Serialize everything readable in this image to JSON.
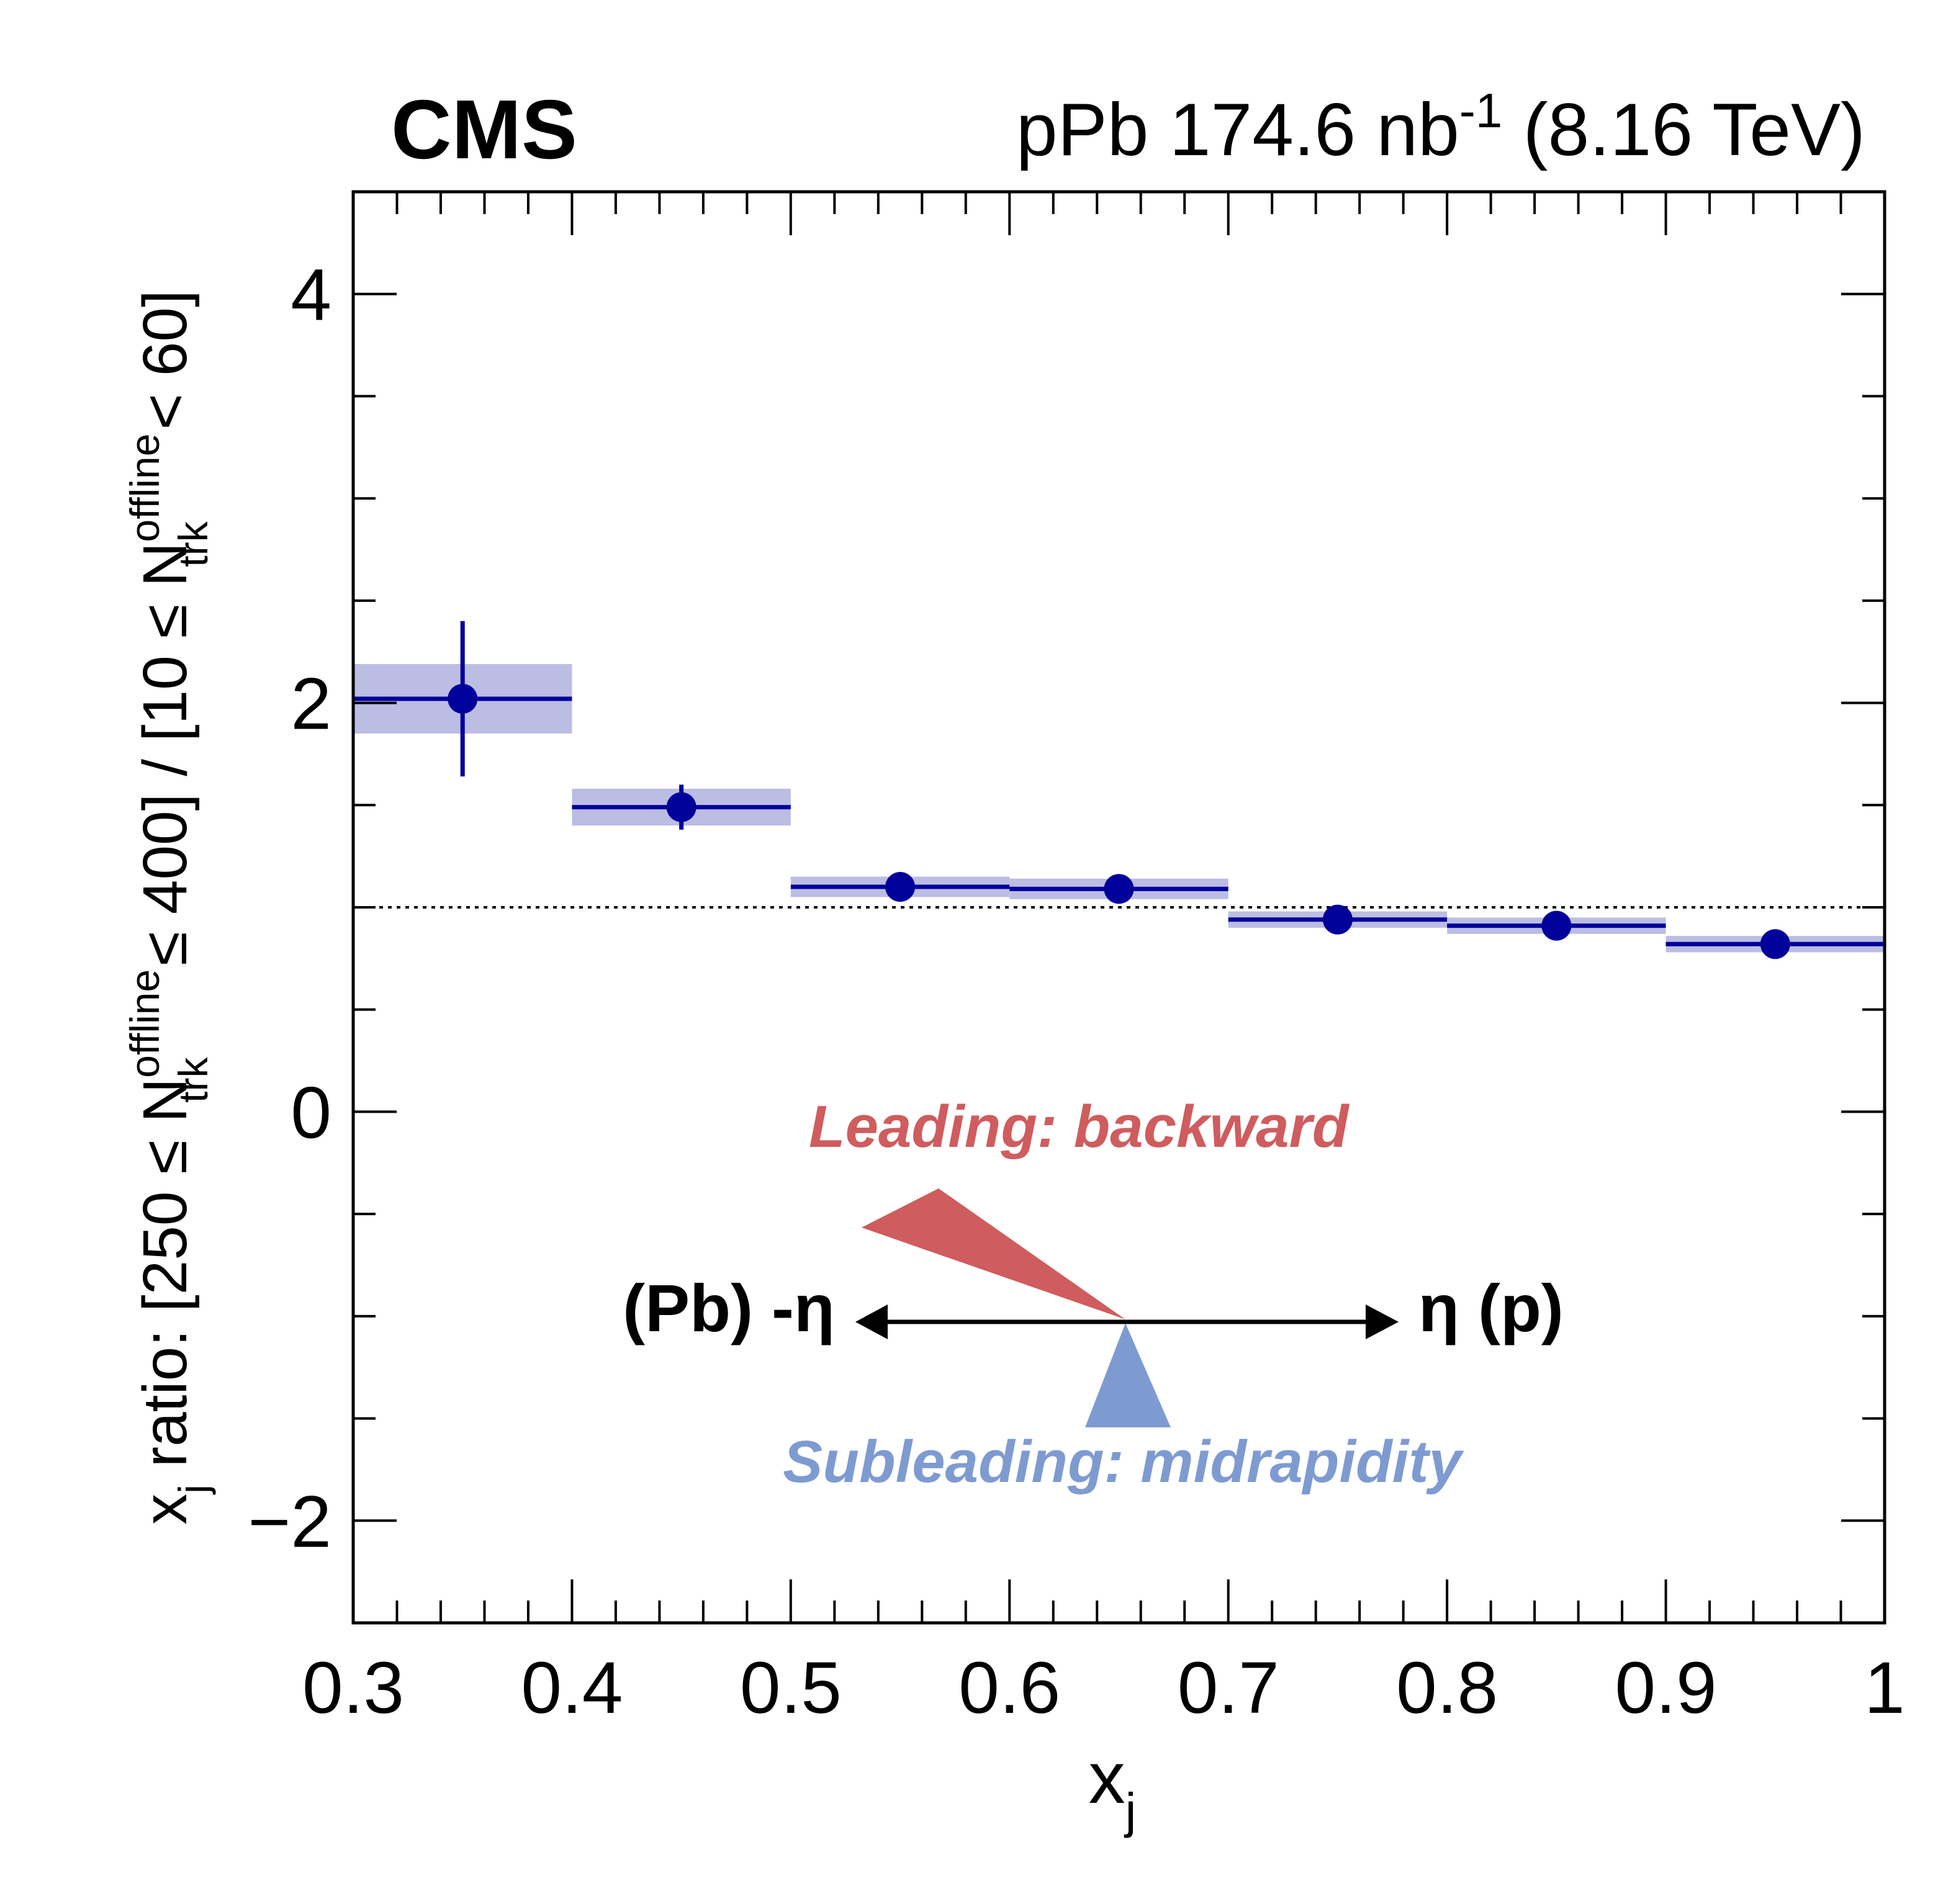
{
  "header": {
    "experiment": "CMS",
    "dataset_prefix": "pPb 174.6 nb",
    "dataset_exponent": "-1",
    "dataset_suffix": " (8.16 TeV)"
  },
  "axes": {
    "x_label_main": "x",
    "x_label_sub": "j",
    "y_label": {
      "p1": "x",
      "p1_sub": "j",
      "p2": " ratio: [250 ≤ N",
      "p2_sup": "offline",
      "p2_sub": "trk",
      "p3": " ≤ 400] / [10 ≤ N",
      "p3_sup": "offline",
      "p3_sub": "trk",
      "p4": " < 60]"
    }
  },
  "annotations": {
    "leading": "Leading: backward",
    "subleading": "Subleading: midrapidity",
    "left_arrow_label": "(Pb) -η",
    "right_arrow_label": "η (p)"
  },
  "colors": {
    "marker": "#00009b",
    "syst_band": "#bcbde3",
    "leading": "#cf5c5e",
    "subleading": "#7e9bd1",
    "reference_line": "#000000"
  },
  "chart_data": {
    "type": "scatter",
    "xlabel": "x_j",
    "ylabel": "x_j ratio: [250 ≤ N_trk^offline ≤ 400] / [10 ≤ N_trk^offline < 60]",
    "xlim": [
      0.3,
      1.0
    ],
    "ylim": [
      -2.5,
      4.5
    ],
    "x_ticks": [
      0.3,
      0.4,
      0.5,
      0.6,
      0.7,
      0.8,
      0.9,
      1.0
    ],
    "x_tick_labels": [
      "0.3",
      "0.4",
      "0.5",
      "0.6",
      "0.7",
      "0.8",
      "0.9",
      "1"
    ],
    "y_ticks": [
      -2,
      0,
      2,
      4
    ],
    "y_tick_labels": [
      "−2",
      "0",
      "2",
      "4"
    ],
    "reference_line_y": 1.0,
    "grid": false,
    "series": [
      {
        "points": [
          {
            "x": 0.35,
            "x_low": 0.3,
            "x_high": 0.4,
            "y": 2.02,
            "stat_err": 0.38,
            "syst_err": 0.17
          },
          {
            "x": 0.45,
            "x_low": 0.4,
            "x_high": 0.5,
            "y": 1.49,
            "stat_err": 0.11,
            "syst_err": 0.09
          },
          {
            "x": 0.55,
            "x_low": 0.5,
            "x_high": 0.6,
            "y": 1.1,
            "stat_err": 0.03,
            "syst_err": 0.05
          },
          {
            "x": 0.65,
            "x_low": 0.6,
            "x_high": 0.7,
            "y": 1.09,
            "stat_err": 0.03,
            "syst_err": 0.05
          },
          {
            "x": 0.75,
            "x_low": 0.7,
            "x_high": 0.8,
            "y": 0.94,
            "stat_err": 0.02,
            "syst_err": 0.04
          },
          {
            "x": 0.85,
            "x_low": 0.8,
            "x_high": 0.9,
            "y": 0.91,
            "stat_err": 0.02,
            "syst_err": 0.04
          },
          {
            "x": 0.95,
            "x_low": 0.9,
            "x_high": 1.0,
            "y": 0.82,
            "stat_err": 0.02,
            "syst_err": 0.04
          }
        ]
      }
    ]
  }
}
